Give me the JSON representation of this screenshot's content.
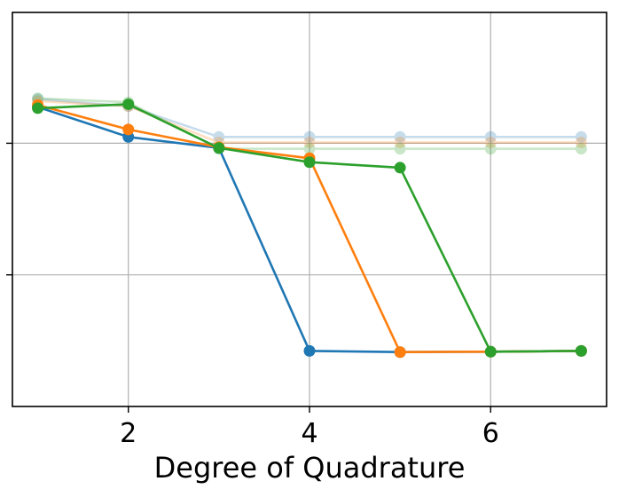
{
  "chart_data": {
    "type": "line",
    "title": "",
    "xlabel": "Degree of Quadrature",
    "ylabel": "",
    "xlim": [
      0.72,
      7.28
    ],
    "ylim": [
      0,
      1
    ],
    "x_ticks": [
      2,
      4,
      6
    ],
    "x_tick_labels": [
      "2",
      "4",
      "6"
    ],
    "y_gridlines": [
      0.334,
      0.668
    ],
    "y_tick_labels_visible": false,
    "grid": true,
    "legend": "none",
    "x": [
      1,
      2,
      3,
      4,
      5,
      6,
      7
    ],
    "series": [
      {
        "color": "#1f77b4",
        "alpha": 1.0,
        "values": [
          0.76,
          0.684,
          0.656,
          0.141,
          0.138,
          0.139,
          0.141
        ]
      },
      {
        "color": "#ff7f0e",
        "alpha": 1.0,
        "values": [
          0.765,
          0.703,
          0.658,
          0.63,
          0.138,
          0.139,
          0.141
        ]
      },
      {
        "color": "#2ca02c",
        "alpha": 1.0,
        "values": [
          0.757,
          0.767,
          0.656,
          0.62,
          0.606,
          0.139,
          0.141
        ]
      },
      {
        "color": "#1f77b4",
        "alpha": 0.25,
        "values": [
          0.78,
          0.762,
          0.684,
          0.684,
          0.684,
          0.684,
          0.684
        ]
      },
      {
        "color": "#ff7f0e",
        "alpha": 0.25,
        "values": [
          0.775,
          0.762,
          0.67,
          0.67,
          0.67,
          0.67,
          0.67
        ]
      },
      {
        "color": "#2ca02c",
        "alpha": 0.25,
        "values": [
          0.782,
          0.772,
          0.654,
          0.654,
          0.654,
          0.654,
          0.654
        ]
      }
    ]
  }
}
